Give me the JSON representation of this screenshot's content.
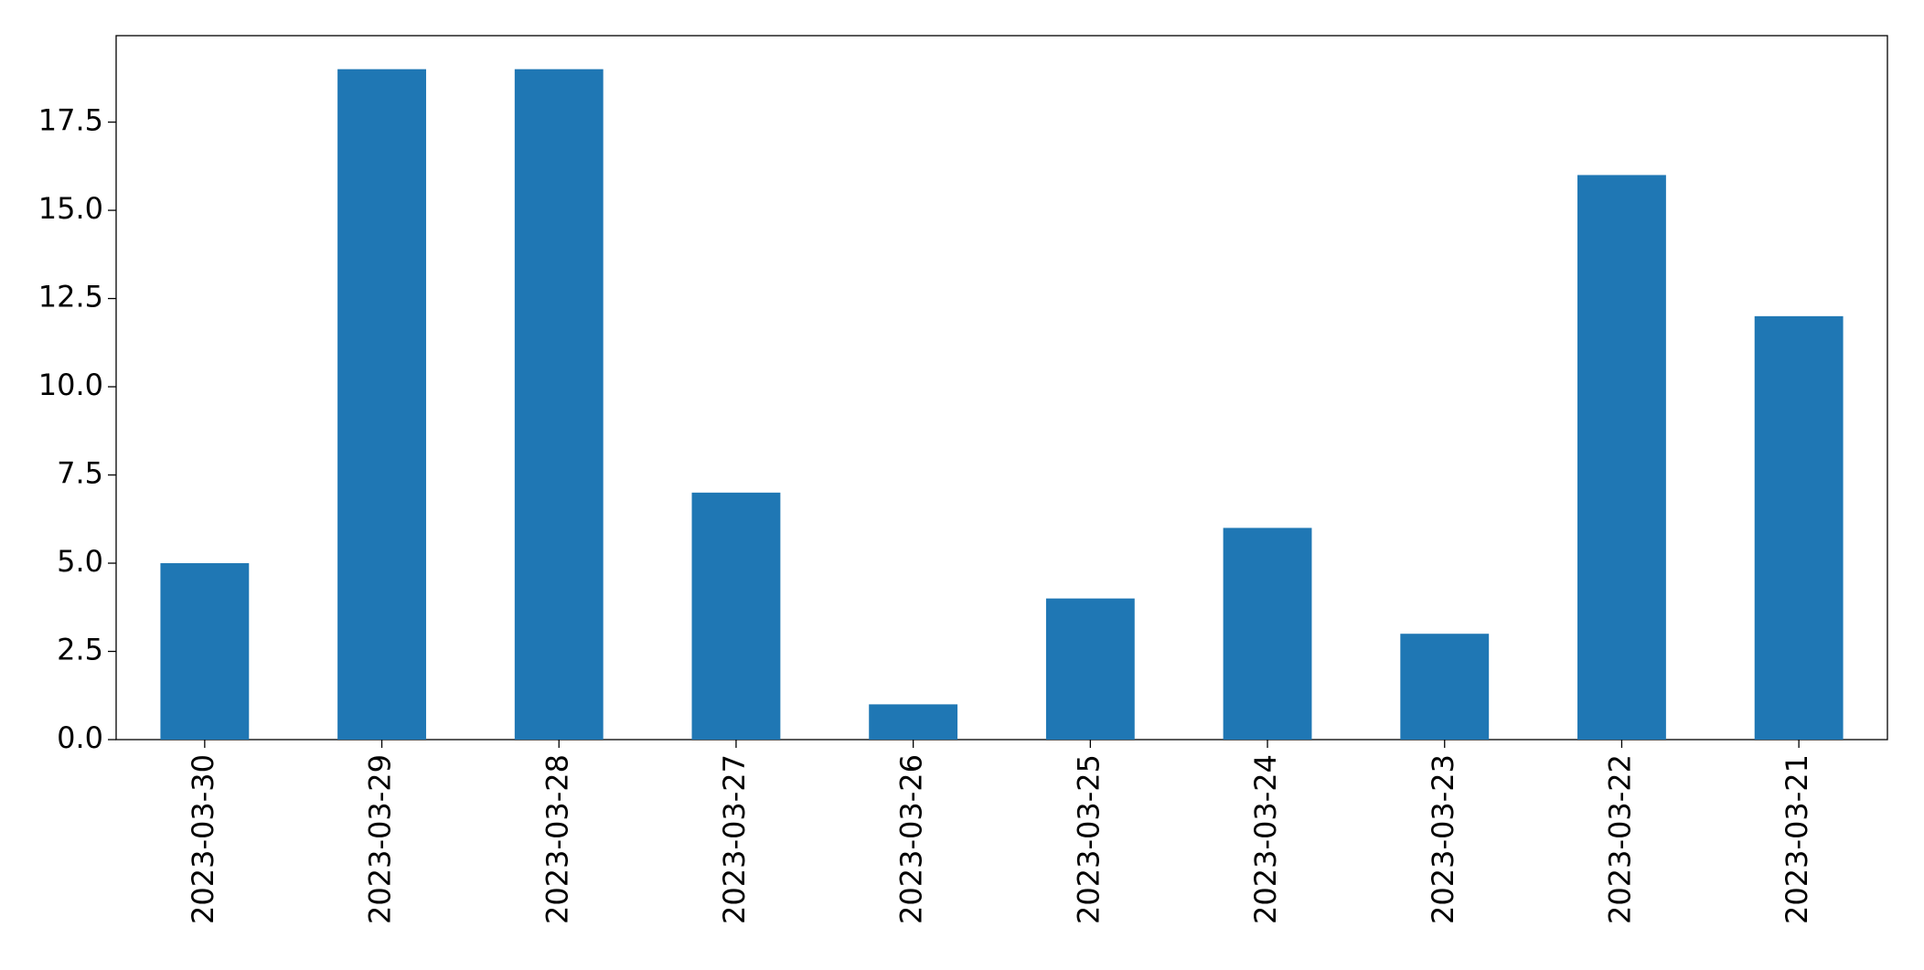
{
  "chart_data": {
    "type": "bar",
    "categories": [
      "2023-03-30",
      "2023-03-29",
      "2023-03-28",
      "2023-03-27",
      "2023-03-26",
      "2023-03-25",
      "2023-03-24",
      "2023-03-23",
      "2023-03-22",
      "2023-03-21"
    ],
    "values": [
      5,
      19,
      19,
      7,
      1,
      4,
      6,
      3,
      16,
      12
    ],
    "color": "#1f77b4",
    "ylim": [
      0,
      19.95
    ],
    "yticks": [
      {
        "value": 0,
        "label": "0.0"
      },
      2.5,
      {
        "value": 5,
        "label": "5.0"
      },
      7.5,
      {
        "value": 10,
        "label": "10.0"
      },
      12.5,
      {
        "value": 15,
        "label": "15.0"
      },
      17.5
    ],
    "grid": false
  }
}
